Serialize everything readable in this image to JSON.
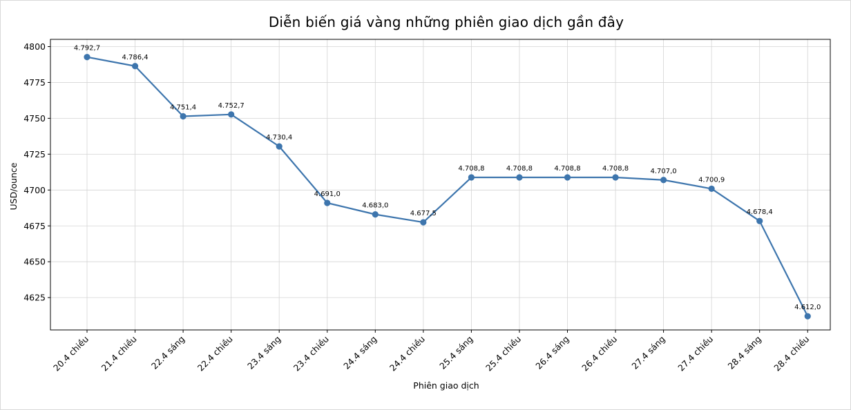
{
  "chart_data": {
    "type": "line",
    "title": "Diễn biến giá vàng những phiên giao dịch gần đây",
    "xlabel": "Phiên giao dịch",
    "ylabel": "USD/ounce",
    "categories": [
      "20.4 chiều",
      "21.4 chiều",
      "22.4 sáng",
      "22.4 chiều",
      "23.4 sáng",
      "23.4 chiều",
      "24.4 sáng",
      "24.4 chiều",
      "25.4 sáng",
      "25.4 chiều",
      "26.4 sáng",
      "26.4 chiều",
      "27.4 sáng",
      "27.4 chiều",
      "28.4 sáng",
      "28.4 chiều"
    ],
    "values": [
      4792.7,
      4786.4,
      4751.4,
      4752.7,
      4730.4,
      4691.0,
      4683.0,
      4677.5,
      4708.8,
      4708.8,
      4708.8,
      4708.8,
      4707.0,
      4700.9,
      4678.4,
      4612.0
    ],
    "data_labels": [
      "4.792,7",
      "4.786,4",
      "4.751,4",
      "4.752,7",
      "4.730,4",
      "4.691,0",
      "4.683,0",
      "4.677,5",
      "4.708,8",
      "4.708,8",
      "4.708,8",
      "4.708,8",
      "4.707,0",
      "4.700,9",
      "4.678,4",
      "4.612,0"
    ],
    "yticks": [
      4625,
      4650,
      4675,
      4700,
      4725,
      4750,
      4775,
      4800
    ],
    "ylim": [
      4603,
      4803
    ],
    "grid": true,
    "legend": null,
    "series_color": "#3d75ad",
    "marker": "circle"
  }
}
